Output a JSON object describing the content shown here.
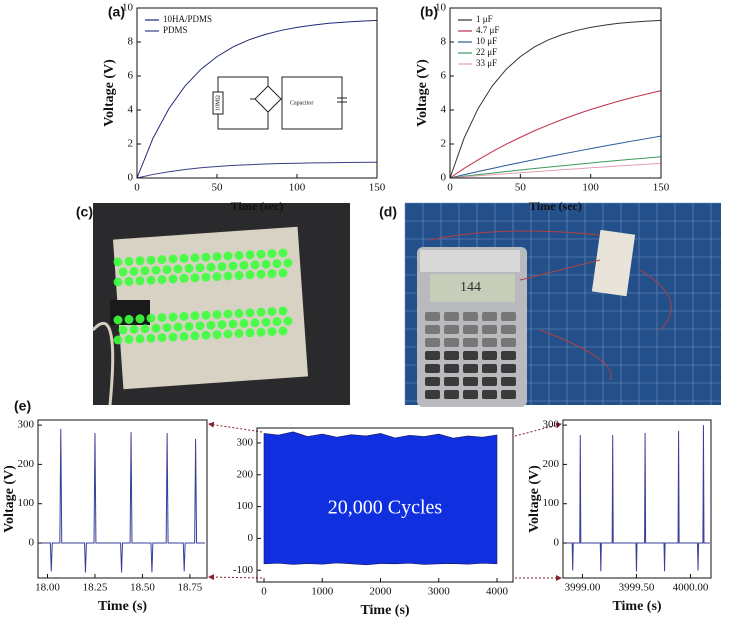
{
  "chart_data": [
    {
      "type": "line",
      "label": "(a)",
      "xlabel": "Time (sec)",
      "ylabel": "Voltage (V)",
      "x": [
        0,
        10,
        20,
        30,
        40,
        50,
        60,
        70,
        80,
        90,
        100,
        110,
        120,
        130,
        140,
        150
      ],
      "xlim": [
        0,
        150
      ],
      "xticks": [
        0,
        50,
        100,
        150
      ],
      "ylim": [
        0,
        10
      ],
      "yticks": [
        0,
        2,
        4,
        6,
        8,
        10
      ],
      "series": [
        {
          "name": "10HA/PDMS",
          "color": "#1f2a7a",
          "values": [
            0,
            2.34,
            4.09,
            5.41,
            6.4,
            7.14,
            7.71,
            8.13,
            8.44,
            8.68,
            8.86,
            8.99,
            9.1,
            9.17,
            9.23,
            9.27
          ]
        },
        {
          "name": "PDMS",
          "color": "#3a3f8a",
          "values": [
            0,
            0.21,
            0.37,
            0.5,
            0.6,
            0.68,
            0.74,
            0.78,
            0.82,
            0.85,
            0.87,
            0.89,
            0.9,
            0.91,
            0.92,
            0.93
          ]
        }
      ],
      "inset": {
        "resistor": "10MΩ",
        "capacitor": "Capacitor"
      }
    },
    {
      "type": "line",
      "label": "(b)",
      "xlabel": "Time (sec)",
      "ylabel": "Voltage (V)",
      "x": [
        0,
        10,
        20,
        30,
        40,
        50,
        60,
        70,
        80,
        90,
        100,
        110,
        120,
        130,
        140,
        150
      ],
      "xlim": [
        0,
        150
      ],
      "xticks": [
        0,
        50,
        100,
        150
      ],
      "ylim": [
        0,
        10
      ],
      "yticks": [
        0,
        2,
        4,
        6,
        8,
        10
      ],
      "series": [
        {
          "name": "1 μF",
          "color": "#333333",
          "values": [
            0,
            2.34,
            4.09,
            5.41,
            6.4,
            7.14,
            7.71,
            8.13,
            8.44,
            8.68,
            8.86,
            8.99,
            9.1,
            9.17,
            9.23,
            9.27
          ]
        },
        {
          "name": "4.7 μF",
          "color": "#c0304a",
          "values": [
            0,
            0.56,
            1.07,
            1.55,
            1.99,
            2.39,
            2.78,
            3.12,
            3.45,
            3.75,
            4.03,
            4.28,
            4.52,
            4.74,
            4.94,
            5.14
          ]
        },
        {
          "name": "10 μF",
          "color": "#2a5a9a",
          "values": [
            0,
            0.19,
            0.38,
            0.56,
            0.74,
            0.91,
            1.08,
            1.25,
            1.41,
            1.57,
            1.73,
            1.88,
            2.03,
            2.18,
            2.32,
            2.46
          ]
        },
        {
          "name": "22 μF",
          "color": "#3a9a5a",
          "values": [
            0,
            0.1,
            0.2,
            0.29,
            0.38,
            0.47,
            0.56,
            0.64,
            0.72,
            0.8,
            0.88,
            0.96,
            1.04,
            1.11,
            1.18,
            1.25
          ]
        },
        {
          "name": "33 μF",
          "color": "#e0a0b0",
          "values": [
            0,
            0.07,
            0.13,
            0.19,
            0.25,
            0.31,
            0.37,
            0.43,
            0.49,
            0.54,
            0.6,
            0.65,
            0.71,
            0.76,
            0.81,
            0.86
          ]
        }
      ]
    },
    {
      "type": "line",
      "xlabel": "Time (s)",
      "ylabel": "Voltage (V)",
      "color": "#3a3f9a",
      "x": [
        17.96,
        18.015,
        18.02,
        18.025,
        18.065,
        18.07,
        18.075,
        18.195,
        18.2,
        18.205,
        18.245,
        18.25,
        18.255,
        18.385,
        18.39,
        18.395,
        18.435,
        18.44,
        18.445,
        18.545,
        18.55,
        18.555,
        18.625,
        18.63,
        18.635,
        18.715,
        18.72,
        18.725,
        18.775,
        18.78,
        18.785,
        18.83
      ],
      "values": [
        0,
        0,
        -72,
        0,
        0,
        290,
        0,
        0,
        -75,
        0,
        0,
        280,
        0,
        0,
        -75,
        0,
        0,
        282,
        0,
        0,
        -75,
        0,
        0,
        280,
        0,
        0,
        -72,
        0,
        0,
        265,
        0,
        0
      ],
      "xlim": [
        17.95,
        18.84
      ],
      "xticks": [
        {
          "value": 18,
          "label": "18.00"
        },
        18.25,
        {
          "value": 18.5,
          "label": "18.50"
        },
        18.75
      ],
      "ylim": [
        -89,
        313
      ],
      "yticks": [
        0,
        100,
        200,
        300
      ]
    },
    {
      "type": "band",
      "xlabel": "Time (s)",
      "annotation": "20,000 Cycles",
      "color": "#1030e0",
      "x": [
        0,
        250,
        500,
        750,
        1000,
        1250,
        1500,
        1750,
        2000,
        2250,
        2500,
        2750,
        3000,
        3250,
        3500,
        3750,
        4000
      ],
      "upper": [
        330,
        325,
        335,
        320,
        328,
        318,
        326,
        322,
        330,
        316,
        324,
        320,
        328,
        315,
        322,
        318,
        325
      ],
      "lower": [
        -80,
        -78,
        -82,
        -79,
        -81,
        -77,
        -80,
        -83,
        -79,
        -80,
        -78,
        -82,
        -80,
        -79,
        -81,
        -78,
        -80
      ],
      "xlim": [
        -120,
        4275
      ],
      "xticks": [
        0,
        1000,
        2000,
        3000,
        4000
      ],
      "ylim": [
        -137,
        347
      ],
      "yticks": [
        -100,
        0,
        100,
        200,
        300
      ]
    },
    {
      "type": "line",
      "xlabel": "Time (s)",
      "ylabel": "Voltage (V)",
      "color": "#3a3f9a",
      "x": [
        3998.83,
        3998.905,
        3998.91,
        3998.915,
        3998.975,
        3998.98,
        3998.985,
        3999.165,
        3999.17,
        3999.175,
        3999.275,
        3999.28,
        3999.285,
        3999.495,
        3999.5,
        3999.505,
        3999.575,
        3999.58,
        3999.585,
        3999.755,
        3999.76,
        3999.765,
        3999.885,
        3999.89,
        3999.895,
        4000.065,
        4000.07,
        4000.075,
        4000.115,
        4000.12,
        4000.125,
        4000.18
      ],
      "values": [
        0,
        0,
        -70,
        0,
        0,
        275,
        0,
        0,
        -72,
        0,
        0,
        275,
        0,
        0,
        -72,
        0,
        0,
        280,
        0,
        0,
        -72,
        0,
        0,
        285,
        0,
        0,
        -70,
        0,
        0,
        300,
        0,
        0
      ],
      "xlim": [
        3998.82,
        4000.19
      ],
      "xticks": [
        {
          "value": 3999,
          "label": "3999.00"
        },
        {
          "value": 3999.5,
          "label": "3999.50"
        },
        {
          "value": 4000,
          "label": "4000.00"
        }
      ],
      "ylim": [
        -89,
        313
      ],
      "yticks": [
        0,
        100,
        200,
        300
      ]
    }
  ],
  "figure_labels": {
    "c": "(c)",
    "d": "(d)",
    "e": "(e)"
  },
  "calculator_display": "144"
}
